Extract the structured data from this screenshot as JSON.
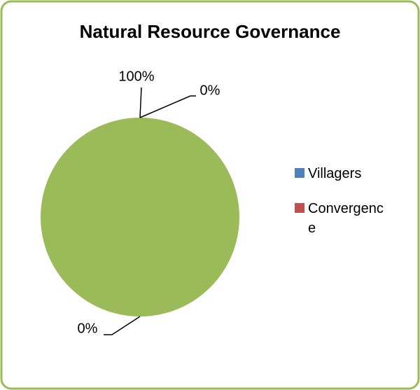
{
  "chart_data": {
    "type": "pie",
    "title": "Natural Resource Governance",
    "categories": [
      "Villagers",
      "Convergence",
      null
    ],
    "values": [
      0,
      0,
      100
    ],
    "value_labels": [
      "0%",
      "0%",
      "100%"
    ],
    "colors": [
      "#4f81bd",
      "#c0504d",
      "#9bbb59"
    ],
    "legend": "right"
  }
}
